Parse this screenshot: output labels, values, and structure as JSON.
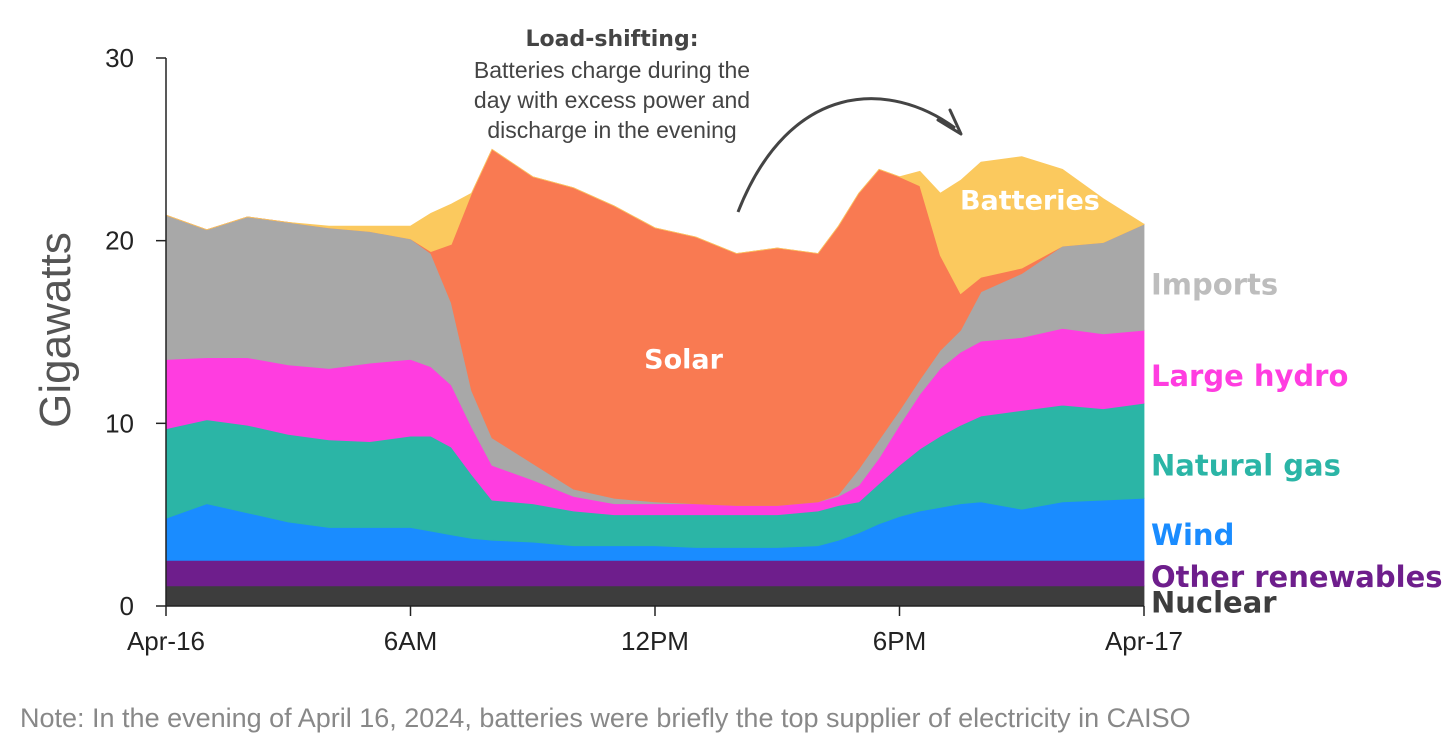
{
  "chart_data": {
    "type": "area",
    "stacked": true,
    "ylabel": "Gigawatts",
    "ylim": [
      0,
      30
    ],
    "yticks": [
      0,
      10,
      20,
      30
    ],
    "xlim": [
      0,
      24
    ],
    "xticks": [
      {
        "value": 0,
        "label": "Apr-16"
      },
      {
        "value": 6,
        "label": "6AM"
      },
      {
        "value": 12,
        "label": "12PM"
      },
      {
        "value": 18,
        "label": "6PM"
      },
      {
        "value": 24,
        "label": "Apr-17"
      }
    ],
    "x": [
      0,
      1,
      2,
      3,
      4,
      5,
      6,
      6.5,
      7,
      7.5,
      8,
      9,
      10,
      11,
      12,
      13,
      14,
      15,
      16,
      16.5,
      17,
      17.5,
      18,
      18.5,
      19,
      19.5,
      20,
      21,
      22,
      23,
      24
    ],
    "series": [
      {
        "name": "Nuclear",
        "color": "#3d3d3d",
        "values": [
          1.1,
          1.1,
          1.1,
          1.1,
          1.1,
          1.1,
          1.1,
          1.1,
          1.1,
          1.1,
          1.1,
          1.1,
          1.1,
          1.1,
          1.1,
          1.1,
          1.1,
          1.1,
          1.1,
          1.1,
          1.1,
          1.1,
          1.1,
          1.1,
          1.1,
          1.1,
          1.1,
          1.1,
          1.1,
          1.1,
          1.1
        ]
      },
      {
        "name": "Other renewables",
        "color": "#6e1e8c",
        "values": [
          1.4,
          1.4,
          1.4,
          1.4,
          1.4,
          1.4,
          1.4,
          1.4,
          1.4,
          1.4,
          1.4,
          1.4,
          1.4,
          1.4,
          1.4,
          1.4,
          1.4,
          1.4,
          1.4,
          1.4,
          1.4,
          1.4,
          1.4,
          1.4,
          1.4,
          1.4,
          1.4,
          1.4,
          1.4,
          1.4,
          1.4
        ]
      },
      {
        "name": "Wind",
        "color": "#1a8cff",
        "values": [
          2.3,
          3.1,
          2.6,
          2.1,
          1.8,
          1.8,
          1.8,
          1.6,
          1.4,
          1.2,
          1.1,
          1.0,
          0.8,
          0.8,
          0.8,
          0.7,
          0.7,
          0.7,
          0.8,
          1.1,
          1.5,
          2.0,
          2.4,
          2.7,
          2.9,
          3.1,
          3.2,
          2.8,
          3.2,
          3.3,
          3.4
        ]
      },
      {
        "name": "Natural gas",
        "color": "#2bb5a6",
        "values": [
          4.9,
          4.6,
          4.8,
          4.8,
          4.8,
          4.7,
          5.0,
          5.2,
          4.8,
          3.5,
          2.2,
          2.1,
          1.9,
          1.7,
          1.7,
          1.8,
          1.8,
          1.8,
          1.9,
          1.9,
          1.7,
          2.2,
          2.8,
          3.4,
          3.9,
          4.3,
          4.7,
          5.4,
          5.3,
          5.0,
          5.2
        ]
      },
      {
        "name": "Large hydro",
        "color": "#ff3de0",
        "values": [
          3.8,
          3.4,
          3.7,
          3.8,
          3.9,
          4.3,
          4.2,
          3.8,
          3.4,
          2.6,
          1.9,
          1.3,
          0.8,
          0.6,
          0.6,
          0.6,
          0.5,
          0.5,
          0.5,
          0.5,
          0.9,
          1.4,
          2.2,
          3.0,
          3.7,
          4.0,
          4.1,
          4.0,
          4.2,
          4.1,
          4.0
        ]
      },
      {
        "name": "Imports",
        "color": "#a8a8a8",
        "values": [
          7.9,
          7.0,
          7.7,
          7.8,
          7.7,
          7.2,
          6.6,
          6.2,
          4.5,
          2.0,
          1.5,
          0.9,
          0.4,
          0.3,
          0.1,
          0.0,
          0.0,
          0.0,
          0.0,
          0.1,
          0.9,
          1.0,
          0.8,
          0.8,
          1.0,
          1.2,
          2.7,
          3.5,
          4.5,
          5.0,
          5.8
        ]
      },
      {
        "name": "Solar",
        "color": "#f97a52",
        "values": [
          0.0,
          0.0,
          0.0,
          0.0,
          0.0,
          0.0,
          0.0,
          0.1,
          3.2,
          10.8,
          15.8,
          15.7,
          16.5,
          16.0,
          15.0,
          14.6,
          13.8,
          14.1,
          13.6,
          14.7,
          15.1,
          14.8,
          12.8,
          10.6,
          5.2,
          2.0,
          0.8,
          0.3,
          0.0,
          0.0,
          0.0
        ]
      },
      {
        "name": "Batteries",
        "color": "#fbc95e",
        "values": [
          0.0,
          0.0,
          0.0,
          0.0,
          0.1,
          0.3,
          0.7,
          2.1,
          2.2,
          0.0,
          0.0,
          0.0,
          0.0,
          0.0,
          0.0,
          0.0,
          0.0,
          0.0,
          0.0,
          0.0,
          0.0,
          0.0,
          0.0,
          0.8,
          3.4,
          6.2,
          6.3,
          6.1,
          4.2,
          2.4,
          0.0
        ]
      }
    ],
    "area_labels": [
      {
        "series": "Solar",
        "text": "Solar",
        "x": 12.7,
        "y": 13.5
      },
      {
        "series": "Batteries",
        "text": "Batteries",
        "x": 21.2,
        "y": 22.2
      }
    ],
    "legend": [
      {
        "text": "Imports",
        "color": "#bdbdbd",
        "y": 17.6
      },
      {
        "text": "Large hydro",
        "color": "#ff3de0",
        "y": 12.6
      },
      {
        "text": "Natural gas",
        "color": "#2bb5a6",
        "y": 7.7
      },
      {
        "text": "Wind",
        "color": "#1a8cff",
        "y": 3.9
      },
      {
        "text": "Other renewables",
        "color": "#6e1e8c",
        "y": 1.6
      },
      {
        "text": "Nuclear",
        "color": "#3d3d3d",
        "y": 0.2
      }
    ],
    "annotation": {
      "title": "Load-shifting:",
      "lines": [
        "Batteries charge during the",
        "day with excess power and",
        "discharge in the evening"
      ]
    }
  },
  "note": "Note: In the evening of April 16, 2024, batteries were briefly the top supplier of electricity in CAISO"
}
